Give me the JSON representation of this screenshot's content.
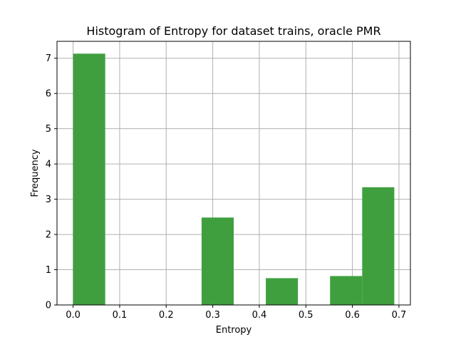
{
  "chart_data": {
    "type": "bar",
    "title": "Histogram of Entropy for dataset trains, oracle PMR",
    "xlabel": "Entropy",
    "ylabel": "Frequency",
    "xlim": [
      -0.0346,
      0.7246
    ],
    "ylim": [
      0,
      7.48
    ],
    "xticks": [
      0.0,
      0.1,
      0.2,
      0.3,
      0.4,
      0.5,
      0.6,
      0.7
    ],
    "xtick_labels": [
      "0.0",
      "0.1",
      "0.2",
      "0.3",
      "0.4",
      "0.5",
      "0.6",
      "0.7"
    ],
    "yticks": [
      0,
      1,
      2,
      3,
      4,
      5,
      6,
      7
    ],
    "ytick_labels": [
      "0",
      "1",
      "2",
      "3",
      "4",
      "5",
      "6",
      "7"
    ],
    "grid": true,
    "bar_color": "#3f9f3f",
    "bin_edges": [
      0.0,
      0.069,
      0.138,
      0.207,
      0.276,
      0.345,
      0.414,
      0.483,
      0.552,
      0.621,
      0.69
    ],
    "values": [
      7.13,
      0,
      0,
      0,
      2.48,
      0,
      0.76,
      0,
      0.82,
      3.34
    ]
  }
}
